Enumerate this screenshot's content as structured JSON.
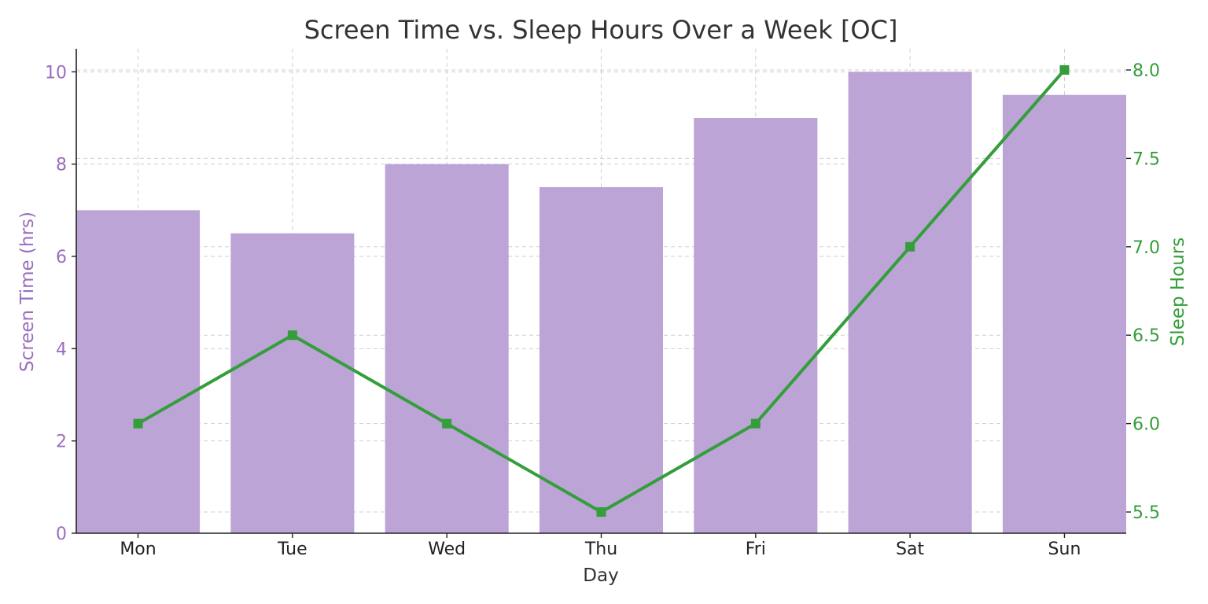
{
  "chart_data": {
    "type": "bar+line",
    "title": "Screen Time vs. Sleep Hours Over a Week [OC]",
    "xlabel": "Day",
    "categories": [
      "Mon",
      "Tue",
      "Wed",
      "Thu",
      "Fri",
      "Sat",
      "Sun"
    ],
    "series": [
      {
        "type": "bar",
        "axis": "left",
        "values": [
          7,
          6.5,
          8,
          7.5,
          9,
          10,
          9.5
        ],
        "color": "#bca4d6"
      },
      {
        "type": "line",
        "axis": "right",
        "marker": "square",
        "values": [
          6.0,
          6.5,
          6.0,
          5.5,
          6.0,
          7.0,
          8.0
        ],
        "color": "#339e3a"
      }
    ],
    "y_left": {
      "label": "Screen Time (hrs)",
      "lim": [
        0,
        10.5
      ],
      "ticks": [
        0,
        2,
        4,
        6,
        8,
        10
      ],
      "tick_labels": [
        "0",
        "2",
        "4",
        "6",
        "8",
        "10"
      ],
      "color": "#9b6dbf"
    },
    "y_right": {
      "label": "Sleep Hours",
      "lim": [
        5.38,
        8.12
      ],
      "ticks": [
        5.5,
        6.0,
        6.5,
        7.0,
        7.5,
        8.0
      ],
      "tick_labels": [
        "5.5",
        "6.0",
        "6.5",
        "7.0",
        "7.5",
        "8.0"
      ],
      "color": "#339e3a"
    },
    "grid": true,
    "grid_style": "dashed",
    "legend": "none"
  }
}
